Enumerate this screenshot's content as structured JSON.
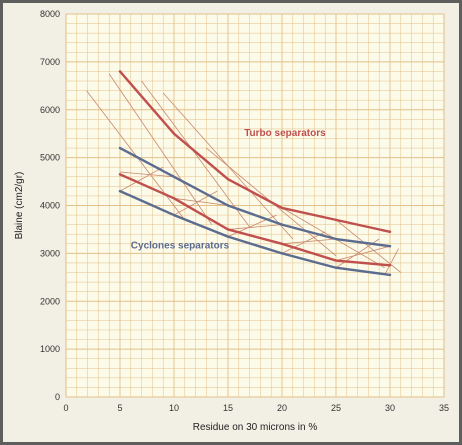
{
  "chart_data": {
    "type": "line",
    "title": "",
    "xlabel": "Residue on  30 microns in %",
    "ylabel": "Blaine (cm2/gr)",
    "xlim": [
      0,
      35
    ],
    "ylim": [
      0,
      8000
    ],
    "x_ticks": [
      0,
      5,
      10,
      15,
      20,
      25,
      30,
      35
    ],
    "y_ticks": [
      0,
      1000,
      2000,
      3000,
      4000,
      5000,
      6000,
      7000,
      8000
    ],
    "grid": true,
    "colors": {
      "turbo": "#c0504d",
      "cyclone": "#5b6c8f",
      "hatch": "#c98a6e",
      "grid": "#e3c08a",
      "background": "#fcfae8"
    },
    "series": [
      {
        "x": [
          5,
          10,
          15,
          20,
          25,
          30
        ],
        "y": [
          6800,
          5500,
          4550,
          3950,
          3700,
          3450
        ],
        "color": "#c0504d"
      },
      {
        "x": [
          5,
          10,
          15,
          20,
          25,
          30
        ],
        "y": [
          4650,
          4150,
          3500,
          3200,
          2850,
          2750
        ],
        "color": "#c0504d"
      },
      {
        "x": [
          5,
          10,
          15,
          20,
          25,
          30
        ],
        "y": [
          5200,
          4600,
          4000,
          3600,
          3300,
          3150
        ],
        "color": "#5b6c8f"
      },
      {
        "x": [
          5,
          10,
          15,
          20,
          25,
          30
        ],
        "y": [
          4300,
          3800,
          3350,
          3000,
          2700,
          2550
        ],
        "color": "#5b6c8f"
      }
    ],
    "annotations": [
      {
        "text": "Turbo separators",
        "x": 16.5,
        "y": 5450,
        "color": "#c0504d"
      },
      {
        "text": "Cyclones separators",
        "x": 6,
        "y": 3100,
        "color": "#5b6c8f"
      }
    ]
  }
}
